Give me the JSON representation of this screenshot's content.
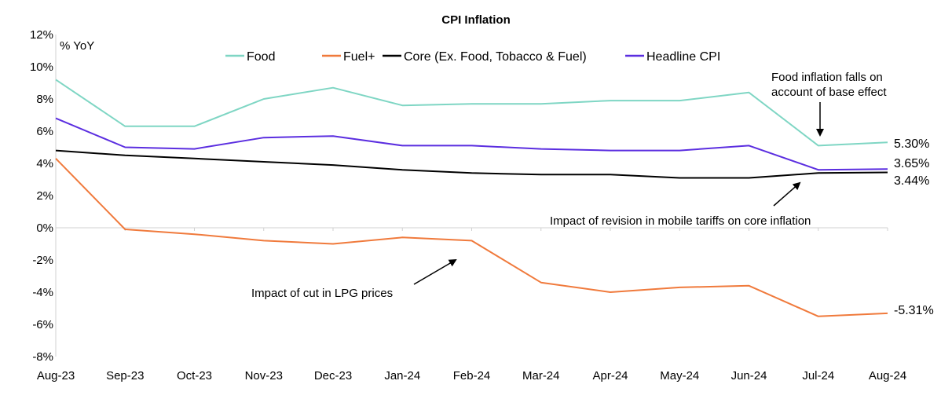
{
  "chart_data": {
    "type": "line",
    "title": "CPI Inflation",
    "ylabel": "% YoY",
    "categories": [
      "Aug-23",
      "Sep-23",
      "Oct-23",
      "Nov-23",
      "Dec-23",
      "Jan-24",
      "Feb-24",
      "Mar-24",
      "Apr-24",
      "May-24",
      "Jun-24",
      "Jul-24",
      "Aug-24"
    ],
    "ylim": [
      -8,
      12
    ],
    "yticks": [
      12,
      10,
      8,
      6,
      4,
      2,
      0,
      -2,
      -4,
      -6,
      -8
    ],
    "ytick_labels": [
      "12%",
      "10%",
      "8%",
      "6%",
      "4%",
      "2%",
      "0%",
      "-2%",
      "-4%",
      "-6%",
      "-8%"
    ],
    "grid": false,
    "legend_position": "top",
    "series": [
      {
        "name": "Food",
        "color": "#7fd6c4",
        "values": [
          9.2,
          6.3,
          6.3,
          8.0,
          8.7,
          7.6,
          7.7,
          7.7,
          7.9,
          7.9,
          8.4,
          5.1,
          5.3
        ]
      },
      {
        "name": "Fuel+",
        "color": "#f07a3c",
        "values": [
          4.3,
          -0.1,
          -0.4,
          -0.8,
          -1.0,
          -0.6,
          -0.8,
          -3.4,
          -4.0,
          -3.7,
          -3.6,
          -5.5,
          -5.31
        ]
      },
      {
        "name": "Core (Ex. Food, Tobacco & Fuel)",
        "color": "#000000",
        "values": [
          4.8,
          4.5,
          4.3,
          4.1,
          3.9,
          3.6,
          3.4,
          3.3,
          3.3,
          3.1,
          3.1,
          3.4,
          3.44
        ]
      },
      {
        "name": "Headline CPI",
        "color": "#5b2ee0",
        "values": [
          6.8,
          5.0,
          4.9,
          5.6,
          5.7,
          5.1,
          5.1,
          4.9,
          4.8,
          4.8,
          5.1,
          3.6,
          3.65
        ]
      }
    ],
    "end_labels": [
      {
        "series": "Food",
        "text": "5.30%"
      },
      {
        "series": "Headline CPI",
        "text": "3.65%"
      },
      {
        "series": "Core (Ex. Food, Tobacco & Fuel)",
        "text": "3.44%"
      },
      {
        "series": "Fuel+",
        "text": "-5.31%"
      }
    ],
    "annotations": [
      {
        "id": "food-base-effect",
        "lines": [
          "Food inflation falls on",
          "account of base effect"
        ],
        "points_to": "Jul-24"
      },
      {
        "id": "mobile-tariffs",
        "lines": [
          "Impact of revision in mobile tariffs on core inflation"
        ],
        "points_to": "Jul-24"
      },
      {
        "id": "lpg-prices",
        "lines": [
          "Impact of cut in LPG prices"
        ],
        "points_to": "Feb-24"
      }
    ]
  }
}
